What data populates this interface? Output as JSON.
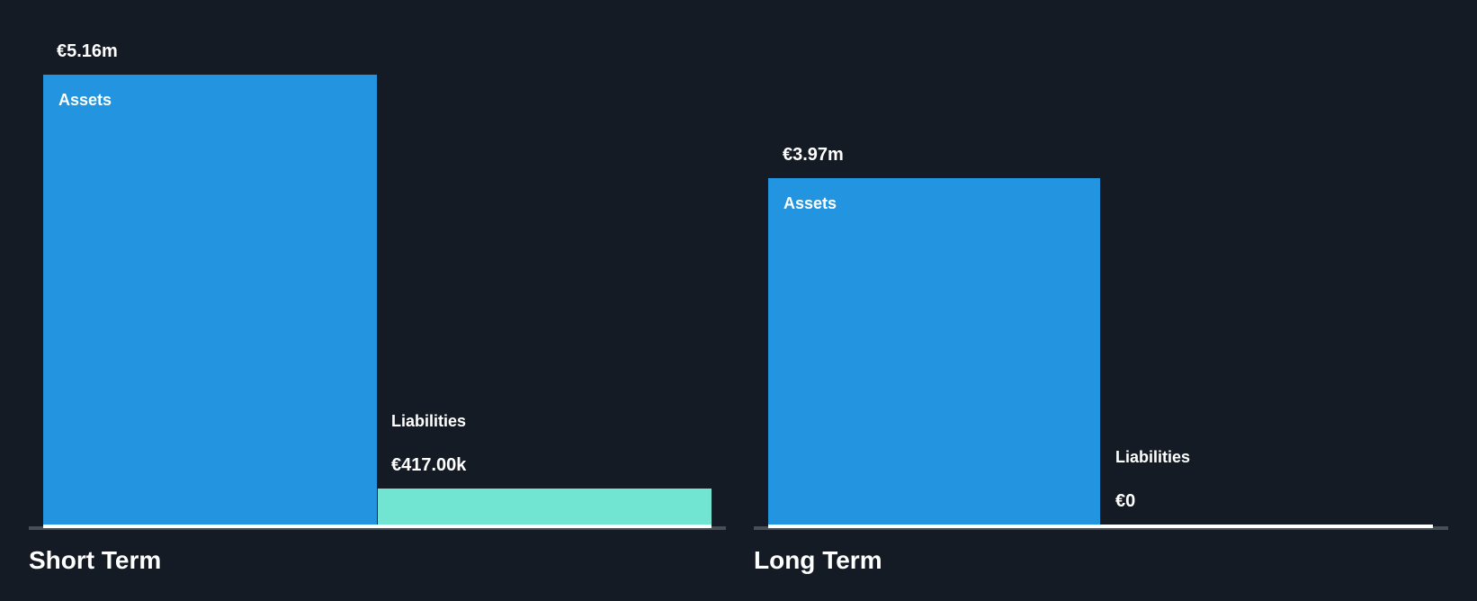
{
  "chart_data": {
    "type": "bar",
    "currency": "EUR",
    "groups": [
      {
        "label": "Short Term",
        "series": [
          {
            "name": "Assets",
            "value_label": "€5.16m",
            "value_eur": 5160000,
            "color": "#2394DF",
            "label_position": "inside-bar"
          },
          {
            "name": "Liabilities",
            "value_label": "€417.00k",
            "value_eur": 417000,
            "color": "#71E5D2",
            "label_position": "above-bar"
          }
        ]
      },
      {
        "label": "Long Term",
        "series": [
          {
            "name": "Assets",
            "value_label": "€3.97m",
            "value_eur": 3970000,
            "color": "#2394DF",
            "label_position": "inside-bar"
          },
          {
            "name": "Liabilities",
            "value_label": "€0",
            "value_eur": 0,
            "color": "#71E5D2",
            "label_position": "above-bar"
          }
        ]
      }
    ],
    "colors": {
      "background": "#151B24",
      "assets_bar": "#2394DF",
      "liabilities_bar": "#71E5D2",
      "axis_baseline": "#FFFFFF",
      "axis_extension": "#474E58",
      "text": "#FFFFFF"
    },
    "layout_hints": {
      "orientation": "vertical-bars",
      "grid": "off",
      "legend": "none",
      "value_labels": "above bars",
      "shared_value_scale": true,
      "scale_max_eur": 5160000
    }
  }
}
